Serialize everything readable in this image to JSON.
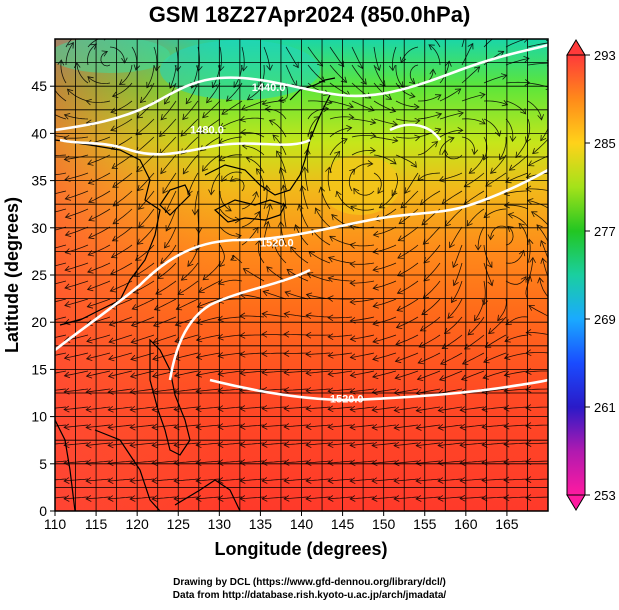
{
  "title": "GSM 18Z27Apr2024 (850.0hPa)",
  "x_axis": {
    "label": "Longitude (degrees)",
    "min": 110,
    "max": 170,
    "ticks": [
      110,
      115,
      120,
      125,
      130,
      135,
      140,
      145,
      150,
      155,
      160,
      165
    ]
  },
  "y_axis": {
    "label": "Latitude  (degrees)",
    "min": 0,
    "max": 50,
    "ticks": [
      0,
      5,
      10,
      15,
      20,
      25,
      30,
      35,
      40,
      45
    ]
  },
  "colorbar": {
    "min": 253,
    "max": 293,
    "labels": [
      293,
      285,
      277,
      269,
      261,
      253
    ],
    "colors": [
      "#ff3a3a",
      "#ff8a1a",
      "#ffd21a",
      "#a4e21a",
      "#22c622",
      "#1acfa0",
      "#1aaaff",
      "#1a4cff",
      "#2a1ac8",
      "#b01ab0",
      "#ff1aa0"
    ]
  },
  "contours": [
    {
      "label": "1440.0",
      "lon": 136.0,
      "lat": 44.5
    },
    {
      "label": "1480.0",
      "lon": 128.5,
      "lat": 40.0
    },
    {
      "label": "1520.0",
      "lon": 137.0,
      "lat": 28.0
    },
    {
      "label": "1520.0",
      "lon": 145.5,
      "lat": 11.5
    }
  ],
  "credits": {
    "line1": "Drawing by DCL (https://www.gfd-dennou.org/library/dcl/)",
    "line2": "Data from http://database.rish.kyoto-u.ac.jp/arch/jmadata/"
  }
}
